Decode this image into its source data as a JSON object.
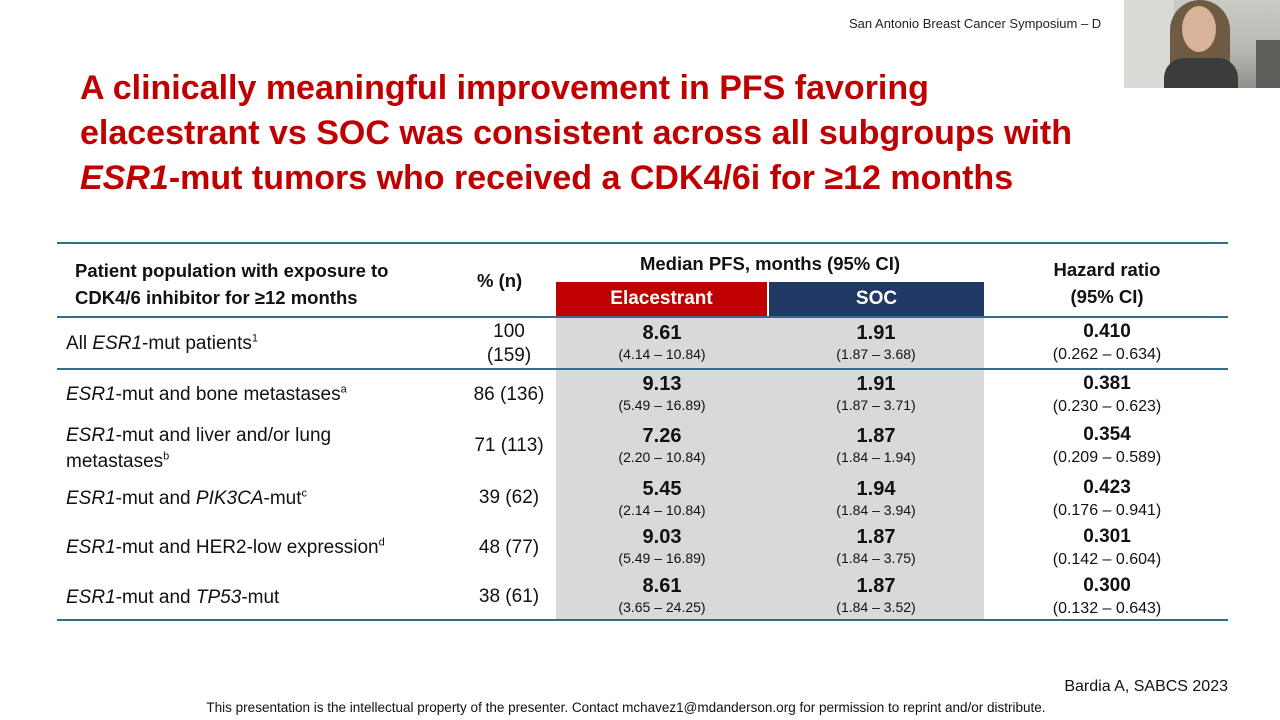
{
  "header": {
    "conference": "San Antonio Breast Cancer Symposium – D"
  },
  "title": {
    "line1": "A clinically meaningful improvement in PFS favoring",
    "line2": "elacestrant vs SOC was consistent across all subgroups with",
    "line3_italic": "ESR1",
    "line3_rest": "-mut tumors who received a CDK4/6i for ≥12 months"
  },
  "table": {
    "headers": {
      "population_line1": "Patient population with exposure to",
      "population_line2": "CDK4/6 inhibitor for ≥12 months",
      "pct": "% (n)",
      "pfs": "Median PFS, months (95% CI)",
      "elacestrant": "Elacestrant",
      "soc": "SOC",
      "hr_line1": "Hazard ratio",
      "hr_line2": "(95% CI)"
    },
    "rows": [
      {
        "pop": {
          "pre": "All ",
          "it1": "ESR1",
          "mid": "-mut patients",
          "it2": "",
          "post": "",
          "sup": "1"
        },
        "pct_line1": "100",
        "pct_line2": "(159)",
        "ela": "8.61",
        "ela_ci": "(4.14 – 10.84)",
        "soc": "1.91",
        "soc_ci": "(1.87 – 3.68)",
        "hr": "0.410",
        "hr_ci": "(0.262 – 0.634)"
      },
      {
        "pop": {
          "pre": "",
          "it1": "ESR1",
          "mid": "-mut and bone metastases",
          "it2": "",
          "post": "",
          "sup": "a"
        },
        "pct": "86 (136)",
        "ela": "9.13",
        "ela_ci": "(5.49 – 16.89)",
        "soc": "1.91",
        "soc_ci": "(1.87 – 3.71)",
        "hr": "0.381",
        "hr_ci": "(0.230 – 0.623)"
      },
      {
        "pop": {
          "pre": "",
          "it1": "ESR1",
          "mid": "-mut and liver and/or lung",
          "line2": "metastases",
          "sup": "b"
        },
        "pct": "71 (113)",
        "ela": "7.26",
        "ela_ci": "(2.20 – 10.84)",
        "soc": "1.87",
        "soc_ci": "(1.84 – 1.94)",
        "hr": "0.354",
        "hr_ci": "(0.209 – 0.589)"
      },
      {
        "pop": {
          "pre": "",
          "it1": "ESR1",
          "mid": "-mut and ",
          "it2": "PIK3CA",
          "post": "-mut",
          "sup": "c"
        },
        "pct": "39 (62)",
        "ela": "5.45",
        "ela_ci": "(2.14 – 10.84)",
        "soc": "1.94",
        "soc_ci": "(1.84 – 3.94)",
        "hr": "0.423",
        "hr_ci": "(0.176 – 0.941)"
      },
      {
        "pop": {
          "pre": "",
          "it1": "ESR1",
          "mid": "-mut and HER2-low expression",
          "it2": "",
          "post": "",
          "sup": "d"
        },
        "pct": "48 (77)",
        "ela": "9.03",
        "ela_ci": "(5.49 – 16.89)",
        "soc": "1.87",
        "soc_ci": "(1.84 – 3.75)",
        "hr": "0.301",
        "hr_ci": "(0.142 – 0.604)"
      },
      {
        "pop": {
          "pre": "",
          "it1": "ESR1",
          "mid": "-mut and ",
          "it2": "TP53",
          "post": "-mut",
          "sup": ""
        },
        "pct": "38 (61)",
        "ela": "8.61",
        "ela_ci": "(3.65 – 24.25)",
        "soc": "1.87",
        "soc_ci": "(1.84 – 3.52)",
        "hr": "0.300",
        "hr_ci": "(0.132 – 0.643)"
      }
    ]
  },
  "citation": "Bardia A, SABCS 2023",
  "footer": "This presentation is the intellectual property of the presenter.  Contact mchavez1@mdanderson.org for permission to reprint and/or distribute.",
  "colors": {
    "title_red": "#c00000",
    "elacestrant_red": "#c00000",
    "soc_navy": "#1f3864",
    "rule_teal": "#2e6f8a",
    "shade_gray": "#d9d9d9"
  }
}
